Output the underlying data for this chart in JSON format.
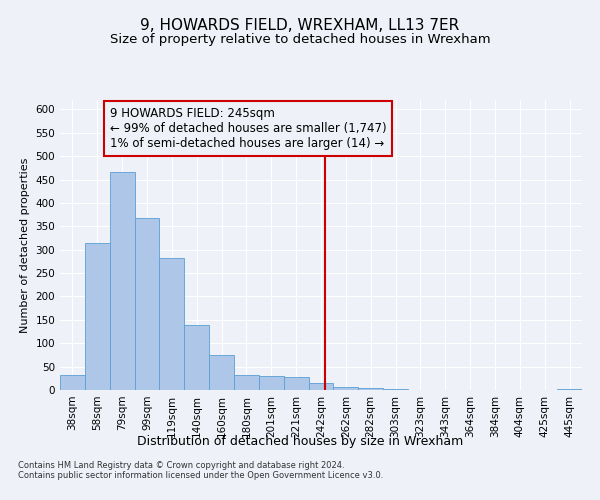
{
  "title": "9, HOWARDS FIELD, WREXHAM, LL13 7ER",
  "subtitle": "Size of property relative to detached houses in Wrexham",
  "xlabel": "Distribution of detached houses by size in Wrexham",
  "ylabel": "Number of detached properties",
  "categories": [
    "38sqm",
    "58sqm",
    "79sqm",
    "99sqm",
    "119sqm",
    "140sqm",
    "160sqm",
    "180sqm",
    "201sqm",
    "221sqm",
    "242sqm",
    "262sqm",
    "282sqm",
    "303sqm",
    "323sqm",
    "343sqm",
    "364sqm",
    "384sqm",
    "404sqm",
    "425sqm",
    "445sqm"
  ],
  "values": [
    33,
    315,
    467,
    368,
    282,
    140,
    75,
    33,
    30,
    28,
    15,
    7,
    4,
    2,
    1,
    1,
    1,
    0,
    0,
    0,
    2
  ],
  "bar_color": "#aec6e8",
  "bar_edge_color": "#5a9fd4",
  "vline_color": "#cc0000",
  "annotation_text": "9 HOWARDS FIELD: 245sqm\n← 99% of detached houses are smaller (1,747)\n1% of semi-detached houses are larger (14) →",
  "annotation_box_color": "#cc0000",
  "ylim": [
    0,
    620
  ],
  "yticks": [
    0,
    50,
    100,
    150,
    200,
    250,
    300,
    350,
    400,
    450,
    500,
    550,
    600
  ],
  "footnote": "Contains HM Land Registry data © Crown copyright and database right 2024.\nContains public sector information licensed under the Open Government Licence v3.0.",
  "background_color": "#eef2f8",
  "grid_color": "#ffffff",
  "title_fontsize": 11,
  "subtitle_fontsize": 9.5,
  "xlabel_fontsize": 9,
  "ylabel_fontsize": 8,
  "tick_fontsize": 7.5,
  "annotation_fontsize": 8.5,
  "footnote_fontsize": 6
}
